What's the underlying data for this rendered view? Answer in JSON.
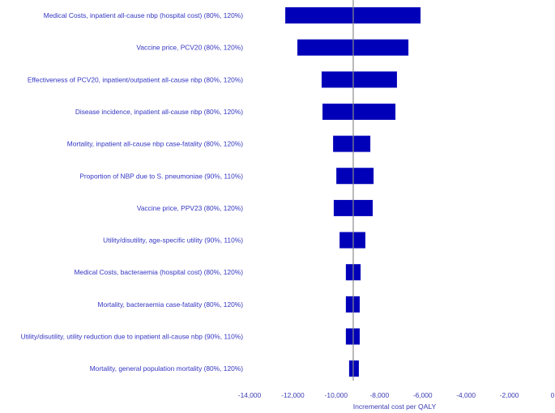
{
  "chart_data": {
    "type": "bar",
    "orientation": "horizontal",
    "style": "tornado",
    "title": "",
    "xlabel": "Incremental cost per QALY",
    "ylabel": "",
    "xlim": [
      -14000,
      0
    ],
    "xticks": [
      -14000,
      -12000,
      -10000,
      -8000,
      -6000,
      -4000,
      -2000,
      0
    ],
    "xtick_labels": [
      "-14,000",
      "-12,000",
      "-10,000",
      "-8,000",
      "-6,000",
      "-4,000",
      "-2,000",
      "0"
    ],
    "base_value": -9210,
    "grid": false,
    "legend": "none",
    "ranges": [
      {
        "label": "Medical Costs, inpatient all-cause nbp (hospital cost) (80%, 120%)",
        "low": -12350,
        "high": -6100
      },
      {
        "label": "Vaccine price, PCV20 (80%, 120%)",
        "low": -11790,
        "high": -6660
      },
      {
        "label": "Effectiveness of PCV20, inpatient/outpatient all-cause nbp (80%, 120%)",
        "low": -10670,
        "high": -7190
      },
      {
        "label": "Disease incidence, inpatient all-cause nbp (80%, 120%)",
        "low": -10630,
        "high": -7260
      },
      {
        "label": "Mortality, inpatient all-cause nbp case-fatality (80%, 120%)",
        "low": -10140,
        "high": -8420
      },
      {
        "label": "Proportion of NBP due to S. pneumoniae (90%, 110%)",
        "low": -9990,
        "high": -8270
      },
      {
        "label": "Vaccine price, PPV23 (80%, 120%)",
        "low": -10110,
        "high": -8310
      },
      {
        "label": "Utility/disutility, age-specific utility (90%, 110%)",
        "low": -9840,
        "high": -8650
      },
      {
        "label": "Medical Costs, bacteraemia (hospital cost) (80%, 120%)",
        "low": -9550,
        "high": -8870
      },
      {
        "label": "Mortality, bacteraemia case-fatality (80%, 120%)",
        "low": -9550,
        "high": -8910
      },
      {
        "label": "Utility/disutility, utility reduction due to inpatient all-cause nbp (90%, 110%)",
        "low": -9550,
        "high": -8910
      },
      {
        "label": "Mortality, general population mortality (80%, 120%)",
        "low": -9400,
        "high": -8950
      }
    ]
  },
  "colors": {
    "bar": "#0000b8",
    "label": "#3535c4",
    "tick": "#3a3ab4",
    "baseline": "#8c8c8c"
  }
}
